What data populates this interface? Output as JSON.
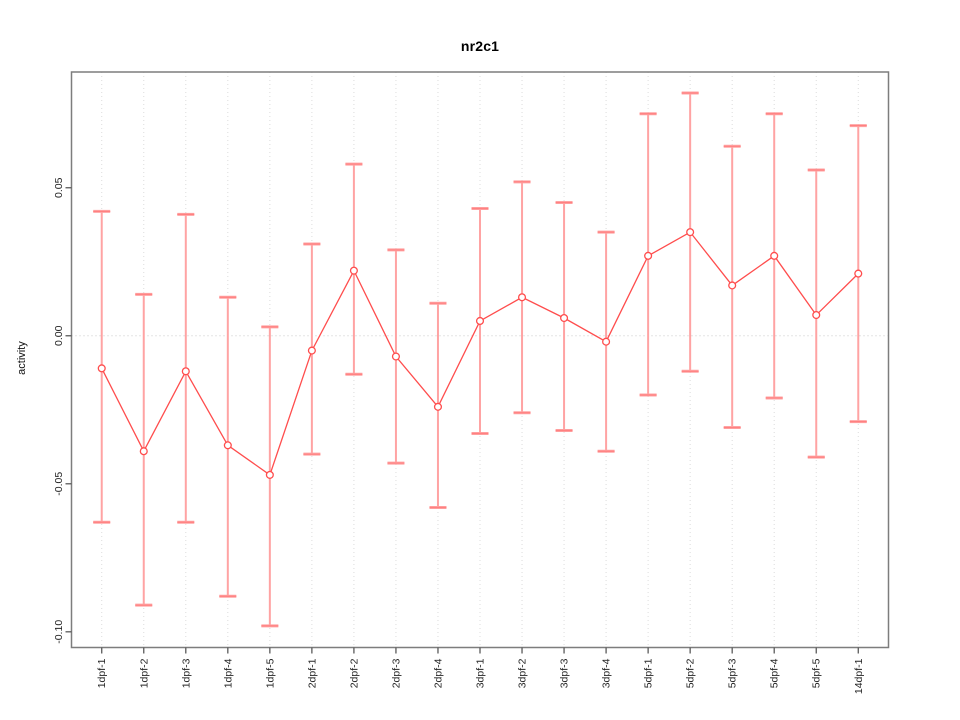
{
  "chart_data": {
    "type": "line",
    "title": "nr2c1",
    "xlabel": "",
    "ylabel": "activity",
    "legend_position": "none",
    "grid": {
      "vertical_dotted_per_category": true,
      "horizontal_dotted_at_zero": true
    },
    "categories": [
      "1dpf-1",
      "1dpf-2",
      "1dpf-3",
      "1dpf-4",
      "1dpf-5",
      "2dpf-1",
      "2dpf-2",
      "2dpf-3",
      "2dpf-4",
      "3dpf-1",
      "3dpf-2",
      "3dpf-3",
      "3dpf-4",
      "5dpf-1",
      "5dpf-2",
      "5dpf-3",
      "5dpf-4",
      "5dpf-5",
      "14dpf-1"
    ],
    "series": [
      {
        "name": "activity",
        "values": [
          -0.011,
          -0.039,
          -0.012,
          -0.037,
          -0.047,
          -0.005,
          0.022,
          -0.007,
          -0.024,
          0.005,
          0.013,
          0.006,
          -0.002,
          0.027,
          0.035,
          0.017,
          0.027,
          0.007,
          0.021
        ],
        "upper": [
          0.042,
          0.014,
          0.041,
          0.013,
          0.003,
          0.031,
          0.058,
          0.029,
          0.011,
          0.043,
          0.052,
          0.045,
          0.035,
          0.075,
          0.082,
          0.064,
          0.075,
          0.056,
          0.071
        ],
        "lower": [
          -0.063,
          -0.091,
          -0.063,
          -0.088,
          -0.098,
          -0.04,
          -0.013,
          -0.043,
          -0.058,
          -0.033,
          -0.026,
          -0.032,
          -0.039,
          -0.02,
          -0.012,
          -0.031,
          -0.021,
          -0.041,
          -0.029
        ]
      }
    ],
    "ylim": [
      -0.1053,
      0.0891
    ],
    "yticks": [
      -0.1,
      -0.05,
      0.0,
      0.05
    ],
    "ytick_labels": [
      "-0.10",
      "-0.05",
      "0.00",
      "0.05"
    ],
    "colors": {
      "point_line": "#ff4d4d",
      "error_bar": "#ffa3a3",
      "error_cap": "#ff8080",
      "grid": "#dcdcdc",
      "zero_line": "#c9c9c9",
      "axis_box": "#7d7d7d",
      "tick": "#5a5a5a",
      "tick_text": "#262626"
    }
  }
}
